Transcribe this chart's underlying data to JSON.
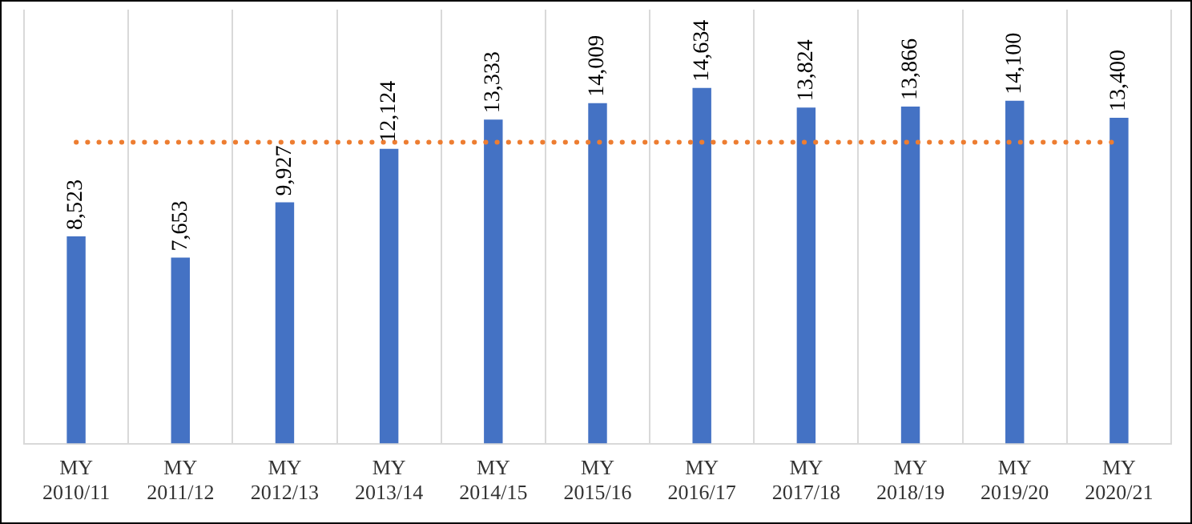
{
  "chart_data": {
    "type": "bar",
    "categories": [
      "MY 2010/11",
      "MY 2011/12",
      "MY 2012/13",
      "MY 2013/14",
      "MY 2014/15",
      "MY 2015/16",
      "MY 2016/17",
      "MY 2017/18",
      "MY 2018/19",
      "MY 2019/20",
      "MY 2020/21"
    ],
    "values": [
      8523,
      7653,
      9927,
      12124,
      13333,
      14009,
      14634,
      13824,
      13866,
      14100,
      13400
    ],
    "value_labels": [
      "8,523",
      "7,653",
      "9,927",
      "12,124",
      "13,333",
      "14,009",
      "14,634",
      "13,824",
      "13,866",
      "14,100",
      "13,400"
    ],
    "color": "#4472c4",
    "grid": "x",
    "ref_lines": [
      {
        "axis": "y",
        "value": 12400,
        "color": "#ed7d31",
        "line_style": "dotted"
      }
    ]
  }
}
